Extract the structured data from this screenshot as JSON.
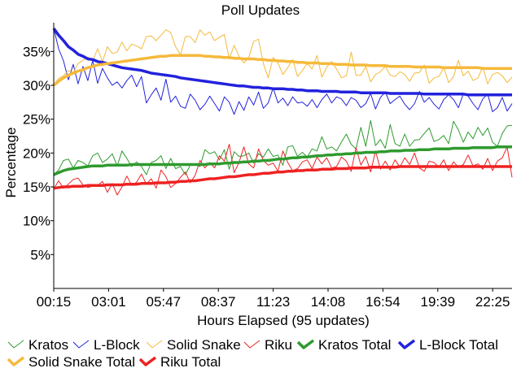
{
  "chart_data": {
    "type": "line",
    "title": "Poll Updates",
    "xlabel": "Hours Elapsed (95 updates)",
    "ylabel": "Percentage",
    "x_ticks": [
      "00:15",
      "03:01",
      "05:47",
      "08:37",
      "11:23",
      "14:08",
      "16:54",
      "19:39",
      "22:25"
    ],
    "y_ticks": [
      "5%",
      "10%",
      "15%",
      "20%",
      "25%",
      "30%",
      "35%"
    ],
    "y_tick_values": [
      5,
      10,
      15,
      20,
      25,
      30,
      35
    ],
    "ylim": [
      0,
      39
    ],
    "num_points": 95,
    "grid": false,
    "legend_position": "bottom",
    "series": [
      {
        "name": "Kratos",
        "color": "#2e9a2e",
        "style": "thin",
        "values": [
          16.8,
          17.5,
          18.9,
          19.1,
          17.8,
          18.9,
          18.6,
          18.1,
          19.6,
          20.0,
          18.6,
          19.1,
          19.9,
          18.1,
          20.3,
          19.2,
          18.0,
          18.7,
          18.0,
          16.8,
          18.6,
          18.9,
          19.6,
          17.7,
          19.2,
          17.7,
          18.0,
          16.8,
          18.2,
          18.3,
          18.0,
          20.5,
          19.9,
          20.2,
          19.0,
          20.5,
          17.6,
          20.2,
          19.5,
          19.6,
          20.0,
          18.5,
          19.9,
          19.4,
          20.6,
          19.5,
          19.7,
          18.2,
          20.9,
          21.1,
          19.5,
          20.1,
          19.4,
          20.6,
          20.3,
          22.4,
          20.6,
          20.9,
          20.3,
          21.6,
          22.8,
          21.3,
          20.6,
          23.8,
          21.0,
          24.8,
          21.1,
          22.0,
          20.7,
          24.2,
          21.4,
          21.0,
          22.8,
          21.0,
          21.9,
          22.0,
          22.9,
          23.7,
          21.7,
          22.0,
          22.6,
          21.4,
          24.7,
          23.4,
          21.6,
          23.1,
          22.1,
          23.8,
          22.6,
          23.7,
          21.6,
          21.0,
          22.9,
          24.0,
          24.1
        ]
      },
      {
        "name": "L-Block",
        "color": "#2222dd",
        "style": "thin",
        "values": [
          38.4,
          35.4,
          33.6,
          30.8,
          33.1,
          30.2,
          32.8,
          30.7,
          33.7,
          30.3,
          32.5,
          31.1,
          30.0,
          30.5,
          29.6,
          30.7,
          31.5,
          29.8,
          31.3,
          27.4,
          28.6,
          29.6,
          27.8,
          30.9,
          27.5,
          28.4,
          26.9,
          26.6,
          28.7,
          27.8,
          26.4,
          27.2,
          28.4,
          27.3,
          26.2,
          28.3,
          27.5,
          25.7,
          27.6,
          26.3,
          28.3,
          27.1,
          29.0,
          26.6,
          27.4,
          29.6,
          27.4,
          28.1,
          27.0,
          28.3,
          27.4,
          27.5,
          26.9,
          27.9,
          26.7,
          27.9,
          28.7,
          27.4,
          28.3,
          28.0,
          27.0,
          28.2,
          27.8,
          26.7,
          27.3,
          28.8,
          26.5,
          28.2,
          29.0,
          27.3,
          27.9,
          28.4,
          27.2,
          26.4,
          27.3,
          29.1,
          27.5,
          28.2,
          27.2,
          26.5,
          27.9,
          28.6,
          27.9,
          26.7,
          28.7,
          28.4,
          27.3,
          26.4,
          28.0,
          28.7,
          26.1,
          26.7,
          28.2,
          26.2,
          27.3
        ]
      },
      {
        "name": "Solid Snake",
        "color": "#f5b93b",
        "style": "thin",
        "values": [
          30.1,
          31.0,
          31.4,
          32.2,
          31.9,
          33.2,
          33.7,
          34.2,
          33.6,
          35.4,
          33.5,
          35.7,
          34.7,
          34.9,
          36.4,
          35.1,
          36.1,
          35.8,
          35.4,
          37.2,
          37.3,
          36.6,
          37.4,
          38.2,
          37.8,
          35.7,
          34.5,
          37.2,
          37.2,
          36.3,
          38.2,
          37.4,
          37.9,
          36.6,
          37.1,
          37.5,
          33.9,
          35.9,
          34.3,
          33.3,
          34.1,
          36.5,
          36.8,
          33.2,
          31.1,
          34.1,
          33.3,
          31.6,
          32.6,
          33.8,
          31.3,
          32.2,
          33.2,
          32.4,
          34.4,
          31.2,
          32.7,
          33.5,
          32.4,
          31.1,
          31.4,
          34.9,
          31.5,
          31.5,
          32.8,
          30.5,
          31.6,
          32.0,
          32.8,
          31.5,
          31.3,
          32.0,
          31.6,
          30.6,
          31.8,
          31.9,
          33.0,
          30.3,
          31.1,
          31.3,
          32.6,
          30.4,
          31.3,
          33.7,
          31.4,
          32.1,
          30.7,
          31.1,
          32.7,
          30.2,
          31.6,
          31.9,
          31.4,
          30.4,
          31.2
        ]
      },
      {
        "name": "Riku",
        "color": "#ee2222",
        "style": "thin",
        "values": [
          14.7,
          15.9,
          14.8,
          15.4,
          16.1,
          16.3,
          15.3,
          14.9,
          15.1,
          15.2,
          15.8,
          14.2,
          15.5,
          13.8,
          15.0,
          16.6,
          15.2,
          15.7,
          16.9,
          15.4,
          16.2,
          14.8,
          17.5,
          16.5,
          14.9,
          15.5,
          16.4,
          17.2,
          15.6,
          16.7,
          18.9,
          17.8,
          18.6,
          17.8,
          19.6,
          18.8,
          21.3,
          17.1,
          18.6,
          20.9,
          18.4,
          17.8,
          20.6,
          18.9,
          18.2,
          18.5,
          17.3,
          20.3,
          18.6,
          17.4,
          17.7,
          18.7,
          19.0,
          17.7,
          19.4,
          18.4,
          19.3,
          17.8,
          18.0,
          19.4,
          18.8,
          17.3,
          20.8,
          18.2,
          19.5,
          17.2,
          20.3,
          17.6,
          18.8,
          17.5,
          19.0,
          17.9,
          19.3,
          18.3,
          20.0,
          17.8,
          17.3,
          18.8,
          18.6,
          17.9,
          19.0,
          17.4,
          18.7,
          17.9,
          18.3,
          19.7,
          18.1,
          18.4,
          17.6,
          19.2,
          17.4,
          18.8,
          19.3,
          20.9,
          16.4
        ]
      },
      {
        "name": "Kratos Total",
        "color": "#2e9a2e",
        "style": "thick",
        "values": [
          16.8,
          17.1,
          17.4,
          17.6,
          17.7,
          17.8,
          17.9,
          18.0,
          18.1,
          18.1,
          18.1,
          18.2,
          18.2,
          18.2,
          18.2,
          18.2,
          18.3,
          18.3,
          18.3,
          18.3,
          18.3,
          18.3,
          18.3,
          18.3,
          18.3,
          18.3,
          18.3,
          18.3,
          18.3,
          18.3,
          18.3,
          18.3,
          18.4,
          18.4,
          18.4,
          18.5,
          18.5,
          18.6,
          18.6,
          18.7,
          18.7,
          18.8,
          18.8,
          18.9,
          18.9,
          19.0,
          19.1,
          19.1,
          19.2,
          19.3,
          19.3,
          19.4,
          19.4,
          19.5,
          19.6,
          19.6,
          19.7,
          19.7,
          19.8,
          19.8,
          19.9,
          19.9,
          20.0,
          20.0,
          20.1,
          20.1,
          20.1,
          20.2,
          20.2,
          20.3,
          20.3,
          20.3,
          20.4,
          20.4,
          20.4,
          20.5,
          20.5,
          20.5,
          20.6,
          20.6,
          20.6,
          20.6,
          20.7,
          20.7,
          20.7,
          20.7,
          20.8,
          20.8,
          20.8,
          20.8,
          20.8,
          20.9,
          20.9,
          20.9,
          20.9
        ]
      },
      {
        "name": "L-Block Total",
        "color": "#2222dd",
        "style": "thick",
        "values": [
          38.4,
          37.4,
          36.6,
          35.7,
          35.2,
          34.6,
          34.3,
          33.9,
          33.8,
          33.5,
          33.4,
          33.2,
          33.0,
          32.8,
          32.6,
          32.5,
          32.4,
          32.3,
          32.2,
          32.0,
          31.8,
          31.7,
          31.6,
          31.5,
          31.4,
          31.3,
          31.1,
          31.0,
          30.9,
          30.8,
          30.7,
          30.6,
          30.5,
          30.4,
          30.3,
          30.2,
          30.1,
          30.0,
          29.9,
          29.9,
          29.8,
          29.7,
          29.7,
          29.6,
          29.6,
          29.5,
          29.5,
          29.5,
          29.4,
          29.4,
          29.3,
          29.3,
          29.2,
          29.2,
          29.2,
          29.1,
          29.1,
          29.1,
          29.1,
          29.0,
          29.0,
          29.0,
          29.0,
          28.9,
          28.9,
          28.9,
          28.9,
          28.9,
          28.9,
          28.8,
          28.8,
          28.8,
          28.8,
          28.8,
          28.8,
          28.8,
          28.7,
          28.7,
          28.7,
          28.7,
          28.7,
          28.7,
          28.7,
          28.7,
          28.7,
          28.6,
          28.6,
          28.6,
          28.6,
          28.6,
          28.6,
          28.6,
          28.6,
          28.6,
          28.6
        ]
      },
      {
        "name": "Solid Snake Total",
        "color": "#f5b93b",
        "style": "thick",
        "values": [
          30.0,
          30.6,
          31.1,
          31.5,
          31.8,
          32.1,
          32.3,
          32.6,
          32.8,
          33.0,
          33.1,
          33.2,
          33.3,
          33.4,
          33.5,
          33.6,
          33.7,
          33.8,
          33.9,
          34.0,
          34.1,
          34.2,
          34.3,
          34.3,
          34.4,
          34.4,
          34.4,
          34.4,
          34.4,
          34.4,
          34.4,
          34.3,
          34.3,
          34.2,
          34.2,
          34.1,
          34.1,
          34.0,
          34.0,
          33.9,
          33.9,
          33.9,
          33.8,
          33.8,
          33.7,
          33.7,
          33.6,
          33.6,
          33.5,
          33.5,
          33.4,
          33.4,
          33.3,
          33.3,
          33.3,
          33.2,
          33.2,
          33.2,
          33.1,
          33.1,
          33.1,
          33.0,
          33.0,
          33.0,
          33.0,
          32.9,
          32.9,
          32.9,
          32.9,
          32.8,
          32.8,
          32.8,
          32.8,
          32.8,
          32.7,
          32.7,
          32.7,
          32.7,
          32.7,
          32.7,
          32.6,
          32.6,
          32.6,
          32.6,
          32.6,
          32.6,
          32.6,
          32.6,
          32.5,
          32.5,
          32.5,
          32.5,
          32.5,
          32.5,
          32.5
        ]
      },
      {
        "name": "Riku Total",
        "color": "#ee2222",
        "style": "thick",
        "values": [
          14.8,
          14.9,
          15.0,
          15.0,
          15.1,
          15.1,
          15.1,
          15.2,
          15.2,
          15.2,
          15.2,
          15.3,
          15.3,
          15.3,
          15.3,
          15.4,
          15.4,
          15.4,
          15.5,
          15.5,
          15.5,
          15.6,
          15.6,
          15.6,
          15.7,
          15.7,
          15.8,
          15.8,
          15.9,
          15.9,
          16.0,
          16.1,
          16.2,
          16.2,
          16.3,
          16.4,
          16.5,
          16.5,
          16.6,
          16.7,
          16.8,
          16.8,
          16.9,
          17.0,
          17.0,
          17.1,
          17.2,
          17.2,
          17.3,
          17.3,
          17.4,
          17.4,
          17.5,
          17.5,
          17.5,
          17.6,
          17.6,
          17.6,
          17.7,
          17.7,
          17.7,
          17.8,
          17.8,
          17.8,
          17.8,
          17.9,
          17.9,
          17.9,
          17.9,
          17.9,
          17.9,
          18.0,
          18.0,
          18.0,
          18.0,
          18.0,
          18.0,
          18.0,
          18.0,
          18.0,
          18.0,
          18.0,
          18.0,
          18.0,
          18.0,
          18.0,
          18.0,
          18.0,
          18.0,
          18.0,
          18.0,
          18.0,
          18.0,
          18.0,
          18.0
        ]
      }
    ]
  }
}
